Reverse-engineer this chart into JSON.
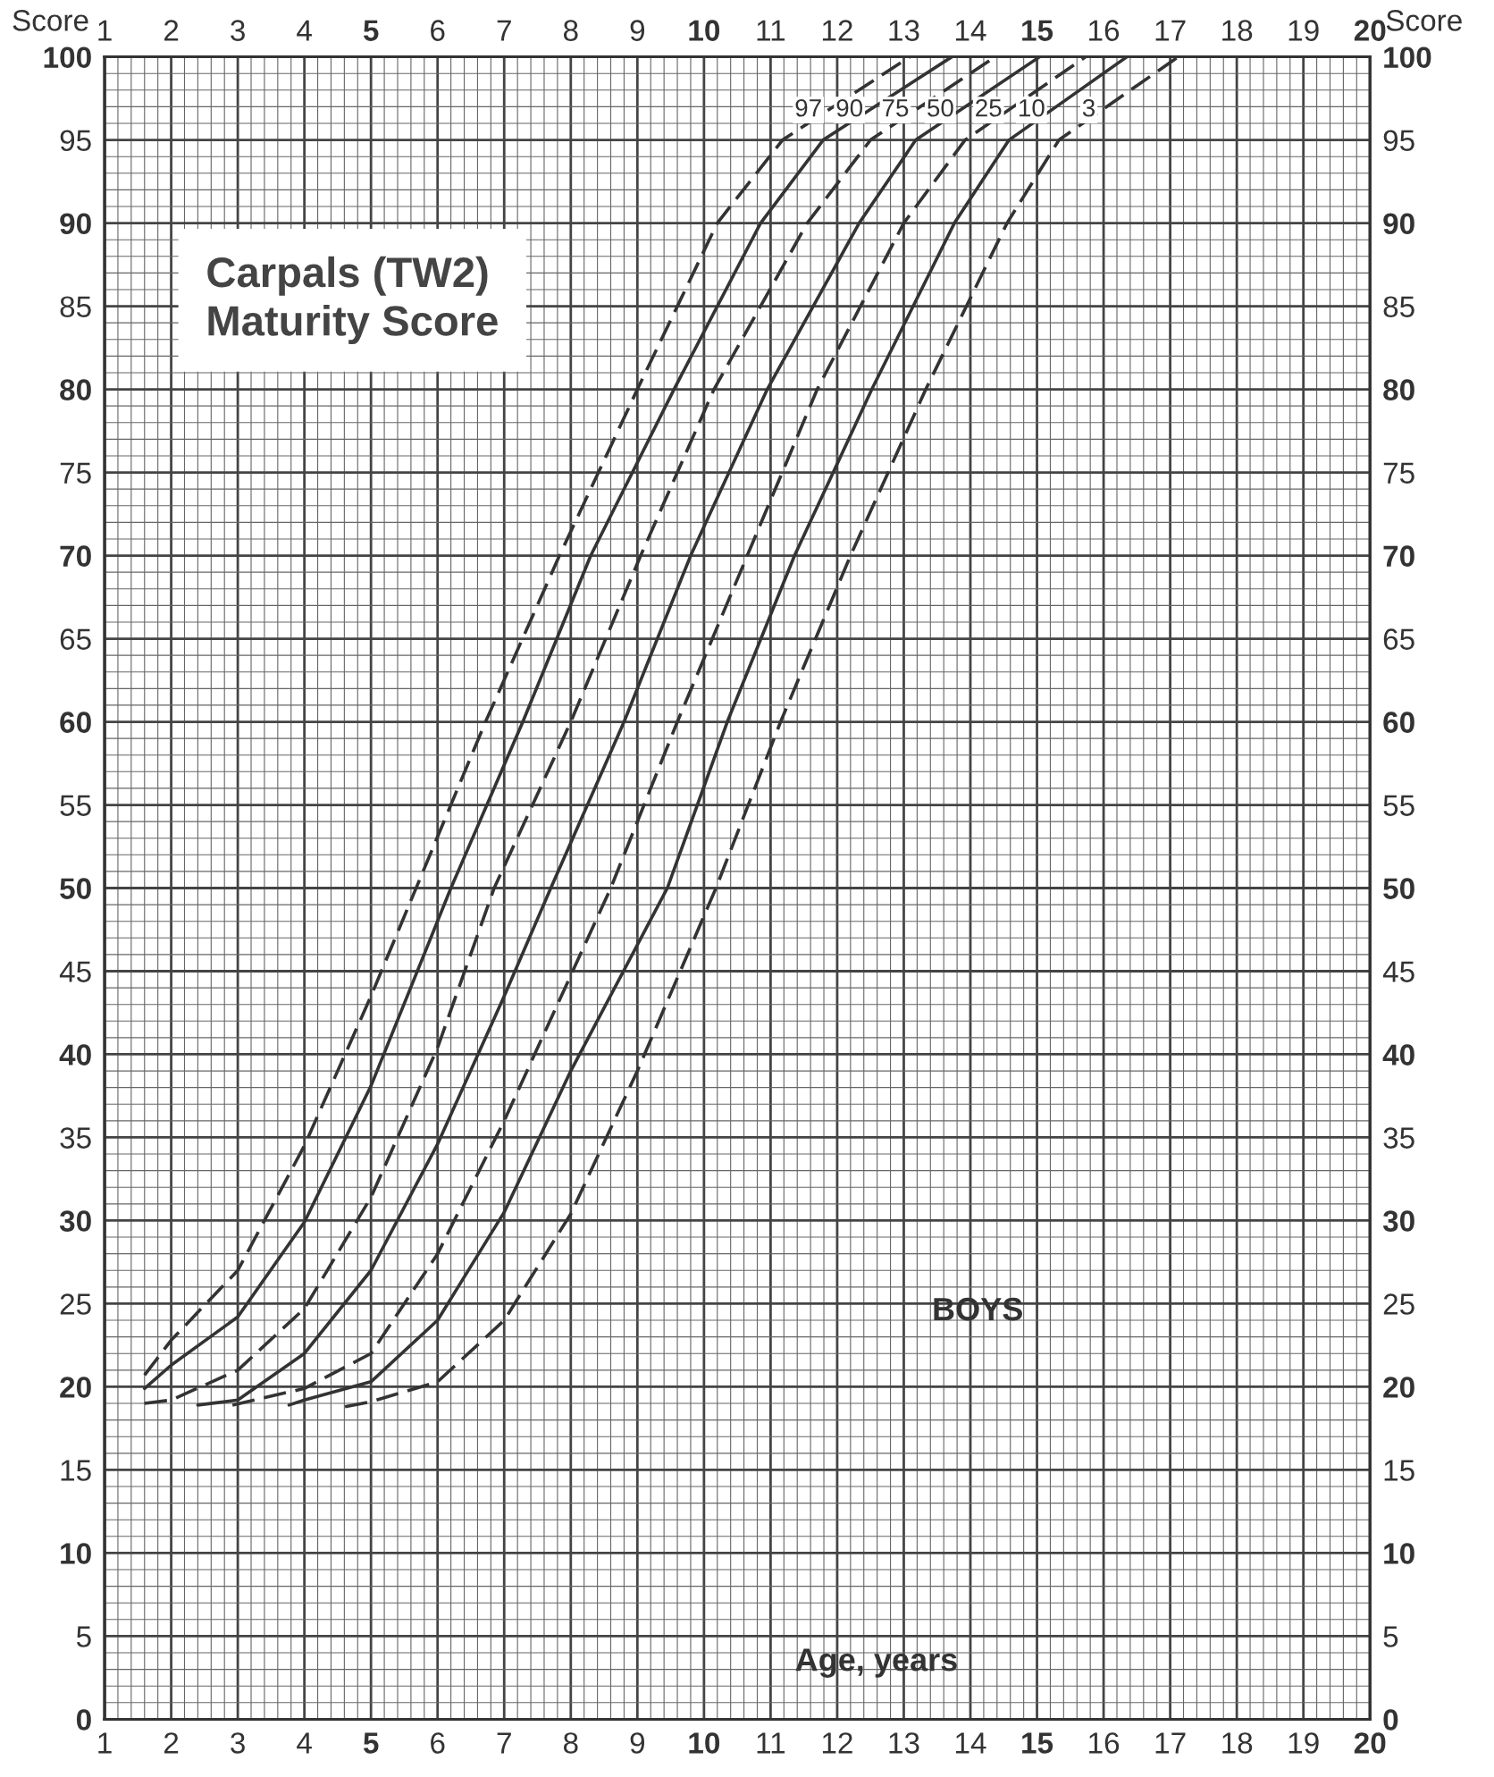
{
  "chart_data": {
    "type": "line",
    "title": "Carpals (TW2)\nMaturity Score",
    "xlabel": "Age, years",
    "ylabel": "Score",
    "y2label": "Score",
    "annotations": [
      "BOYS"
    ],
    "xlim": [
      1,
      20
    ],
    "xticks": [
      1,
      2,
      3,
      4,
      5,
      6,
      7,
      8,
      9,
      10,
      11,
      12,
      13,
      14,
      15,
      16,
      17,
      18,
      19,
      20
    ],
    "x2lim": [
      1,
      20
    ],
    "x2ticks": [
      1,
      2,
      3,
      4,
      5,
      6,
      7,
      8,
      9,
      10,
      11,
      12,
      13,
      14,
      15,
      16,
      17,
      18,
      19,
      20
    ],
    "ylim": [
      0,
      100
    ],
    "yticks": [
      0,
      5,
      10,
      15,
      20,
      25,
      30,
      35,
      40,
      45,
      50,
      55,
      60,
      65,
      70,
      75,
      80,
      85,
      90,
      95,
      100
    ],
    "y2lim": [
      0,
      100
    ],
    "y2ticks": [
      0,
      5,
      10,
      15,
      20,
      25,
      30,
      35,
      40,
      45,
      50,
      55,
      60,
      65,
      70,
      75,
      80,
      85,
      90,
      95,
      100
    ],
    "grid": true,
    "legend": false,
    "marker": "none",
    "series": [
      {
        "name": "97",
        "color": "#333333",
        "line_style": "dashed",
        "x": [
          1.6,
          2,
          3,
          4,
          5,
          6.72,
          7.83,
          9.0,
          10.2,
          11.18,
          13.09
        ],
        "values": [
          20.7,
          22.8,
          27,
          34.5,
          43.5,
          60,
          70,
          80,
          90,
          95,
          100
        ]
      },
      {
        "name": "90",
        "color": "#333333",
        "line_style": "solid",
        "x": [
          1.6,
          2,
          3,
          4,
          5,
          6.2,
          7.28,
          8.3,
          9.55,
          10.85,
          11.79,
          13.72
        ],
        "values": [
          19.9,
          21.3,
          24.2,
          29.9,
          38.1,
          50,
          60,
          70,
          80,
          90,
          95,
          100
        ]
      },
      {
        "name": "75",
        "color": "#333333",
        "line_style": "dashed",
        "x": [
          1.6,
          2,
          3,
          4,
          5,
          6,
          6.85,
          8.0,
          9.05,
          10.15,
          11.55,
          12.5,
          14.37
        ],
        "values": [
          19.0,
          19.2,
          21.0,
          24.7,
          31.4,
          40.4,
          50,
          60,
          70,
          80,
          90,
          95,
          100
        ]
      },
      {
        "name": "50",
        "color": "#333333",
        "line_style": "solid",
        "x": [
          2.4,
          3,
          4,
          5,
          6,
          7,
          7.7,
          8.8,
          9.8,
          10.95,
          12.33,
          13.18,
          15.04
        ],
        "values": [
          18.9,
          19.2,
          22.0,
          27.0,
          34.6,
          43.5,
          50,
          60,
          70,
          80,
          90,
          95,
          100
        ]
      },
      {
        "name": "25",
        "color": "#333333",
        "line_style": "dashed",
        "x": [
          2.92,
          4,
          5,
          6,
          7,
          8.6,
          9.6,
          10.65,
          11.7,
          13.0,
          13.92,
          15.73
        ],
        "values": [
          18.9,
          19.9,
          22.0,
          28,
          36,
          50,
          60,
          70,
          80,
          90,
          95,
          100
        ]
      },
      {
        "name": "10",
        "color": "#333333",
        "line_style": "solid",
        "x": [
          3.77,
          4,
          5,
          6,
          7,
          8,
          9.45,
          10.35,
          11.36,
          12.52,
          13.76,
          14.58,
          16.35
        ],
        "values": [
          18.9,
          19.2,
          20.3,
          24.0,
          30.5,
          39,
          50,
          60,
          70,
          80,
          90,
          95,
          100
        ]
      },
      {
        "name": "3",
        "color": "#333333",
        "line_style": "dashed",
        "x": [
          4.61,
          5,
          6,
          7,
          8,
          9,
          10.18,
          11.15,
          12.2,
          13.33,
          14.55,
          15.33,
          17.12
        ],
        "values": [
          18.8,
          19.1,
          20.3,
          24.0,
          30.4,
          39,
          50,
          60,
          70,
          80,
          90,
          95,
          100
        ]
      }
    ]
  }
}
